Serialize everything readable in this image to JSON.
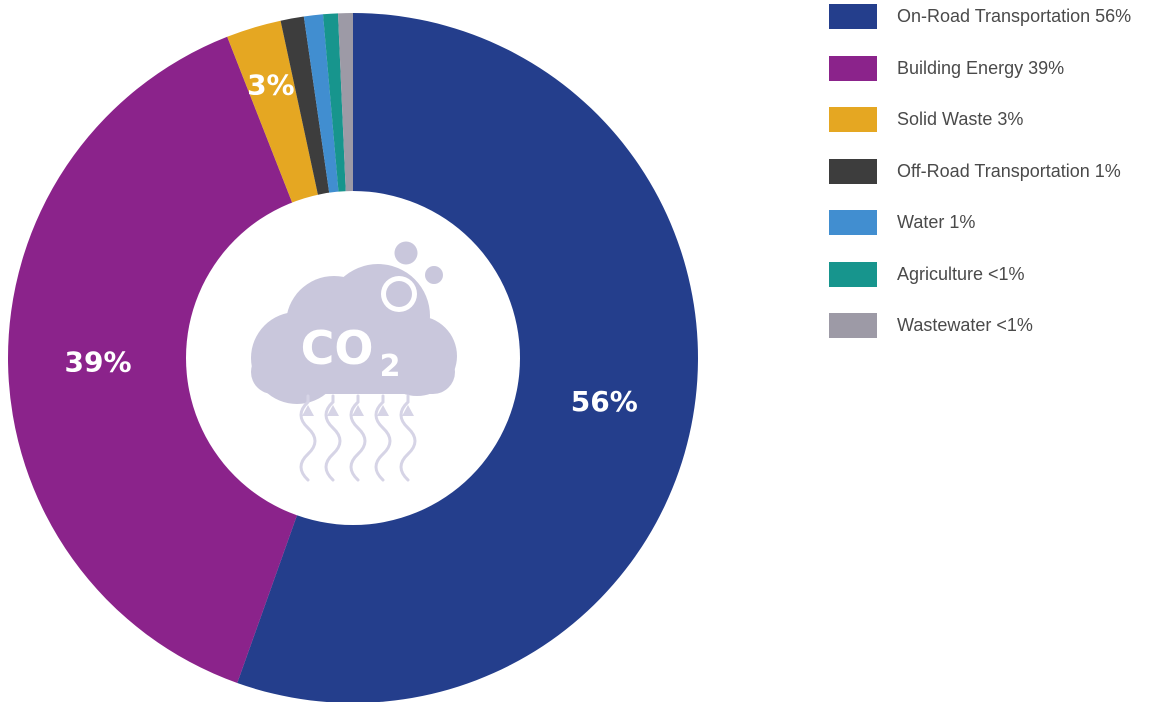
{
  "chart_data": {
    "type": "pie",
    "title": "",
    "donut": true,
    "center_text": {
      "main": "CO",
      "sub": "2"
    },
    "legend_position": "right",
    "slices": [
      {
        "name": "On-Road Transportation",
        "value": 56,
        "legend_label": "On-Road Transportation 56%",
        "data_label": "56%",
        "color": "#243e8c"
      },
      {
        "name": "Building Energy",
        "value": 39,
        "legend_label": "Building Energy 39%",
        "data_label": "39%",
        "color": "#8b238b"
      },
      {
        "name": "Solid Waste",
        "value": 2.6,
        "legend_label": "Solid Waste 3%",
        "data_label": "3%",
        "color": "#e5a722"
      },
      {
        "name": "Off-Road Transportation",
        "value": 1.1,
        "legend_label": "Off-Road Transportation 1%",
        "data_label": "",
        "color": "#3d3d3d"
      },
      {
        "name": "Water",
        "value": 0.9,
        "legend_label": "Water 1%",
        "data_label": "",
        "color": "#418ed0"
      },
      {
        "name": "Agriculture",
        "value": 0.7,
        "legend_label": "Agriculture <1%",
        "data_label": "",
        "color": "#17958d"
      },
      {
        "name": "Wastewater",
        "value": 0.7,
        "legend_label": "Wastewater <1%",
        "data_label": "",
        "color": "#9d9aa6"
      }
    ]
  }
}
